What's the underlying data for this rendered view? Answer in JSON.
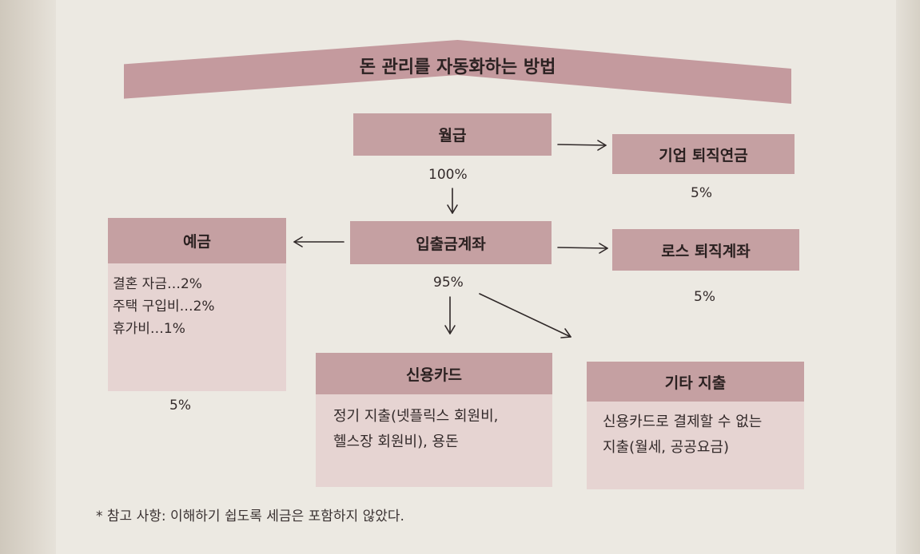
{
  "title": "돈 관리를 자동화하는 방법",
  "nodes": {
    "salary": "월급",
    "company_pension": "기업 퇴직연금",
    "deposit_account": "입출금계좌",
    "savings": "예금",
    "roth": "로스 퇴직계좌",
    "credit_card": "신용카드",
    "other_spending": "기타 지출"
  },
  "percents": {
    "salary_to_account": "100%",
    "company_pension": "5%",
    "roth": "5%",
    "account_outflow": "95%",
    "savings": "5%"
  },
  "savings_items": [
    "결혼 자금…2%",
    "주택 구입비…2%",
    "휴가비…1%"
  ],
  "credit_card_desc": [
    "정기 지출(넷플릭스 회원비,",
    "헬스장 회원비), 용돈"
  ],
  "other_spending_desc": [
    "신용카드로 결제할 수 없는",
    "지출(월세, 공공요금)"
  ],
  "footnote": "* 참고 사항: 이해하기 쉽도록 세금은 포함하지 않았다.",
  "colors": {
    "box": "#c5a0a2",
    "box_light": "#e6d4d2",
    "banner": "#c49a9e"
  }
}
